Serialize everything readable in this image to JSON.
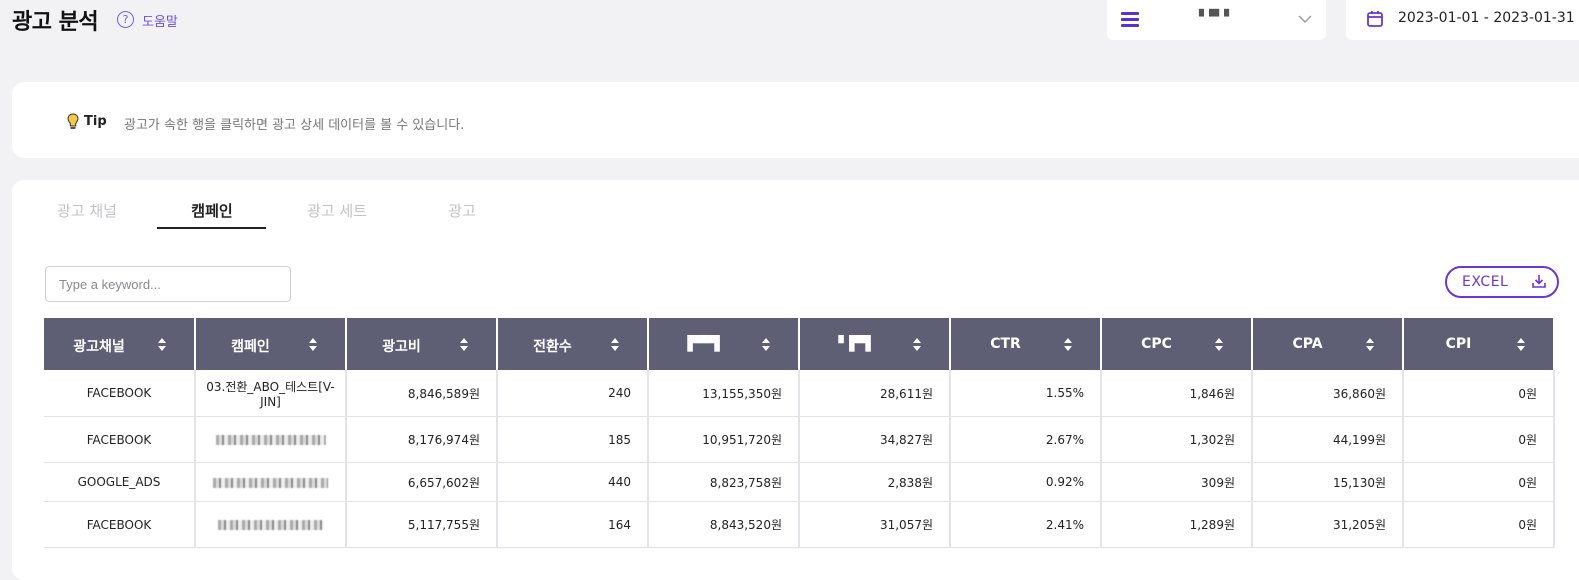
{
  "header": {
    "title": "광고 분석",
    "help_icon": "?",
    "help_label": "도움말",
    "account": {
      "name": "▘▀▝",
      "icon": "menu-icon"
    },
    "date_range": "2023-01-01 - 2023-01-31"
  },
  "tip": {
    "label": "Tip",
    "text": "광고가 속한 행을 클릭하면 광고 상세 데이터를 볼 수 있습니다."
  },
  "tabs": [
    {
      "label": "광고 채널",
      "active": false
    },
    {
      "label": "캠페인",
      "active": true
    },
    {
      "label": "광고 세트",
      "active": false
    },
    {
      "label": "광고",
      "active": false
    }
  ],
  "search": {
    "placeholder": "Type a keyword..."
  },
  "excel_button": {
    "label": "EXCEL"
  },
  "table": {
    "columns": [
      "광고채널",
      "캠페인",
      "광고비",
      "전환수",
      "▛▀▜",
      "▘▛▜",
      "CTR",
      "CPC",
      "CPA",
      "CPI"
    ],
    "rows": [
      [
        "FACEBOOK",
        "03.전환_ABO_테스트[V-JIN]",
        "8,846,589원",
        "240",
        "13,155,350원",
        "28,611원",
        "1.55%",
        "1,846원",
        "36,860원",
        "0원"
      ],
      [
        "FACEBOOK",
        "",
        "8,176,974원",
        "185",
        "10,951,720원",
        "34,827원",
        "2.67%",
        "1,302원",
        "44,199원",
        "0원"
      ],
      [
        "GOOGLE_ADS",
        "",
        "6,657,602원",
        "440",
        "8,823,758원",
        "2,838원",
        "0.92%",
        "309원",
        "15,130원",
        "0원"
      ],
      [
        "FACEBOOK",
        "",
        "5,117,755원",
        "164",
        "8,843,520원",
        "31,057원",
        "2.41%",
        "1,289원",
        "31,205원",
        "0원"
      ]
    ]
  },
  "colors": {
    "accent": "#6b35d9",
    "header_bg": "#5e5f74",
    "page_bg": "#f2f2f4"
  }
}
